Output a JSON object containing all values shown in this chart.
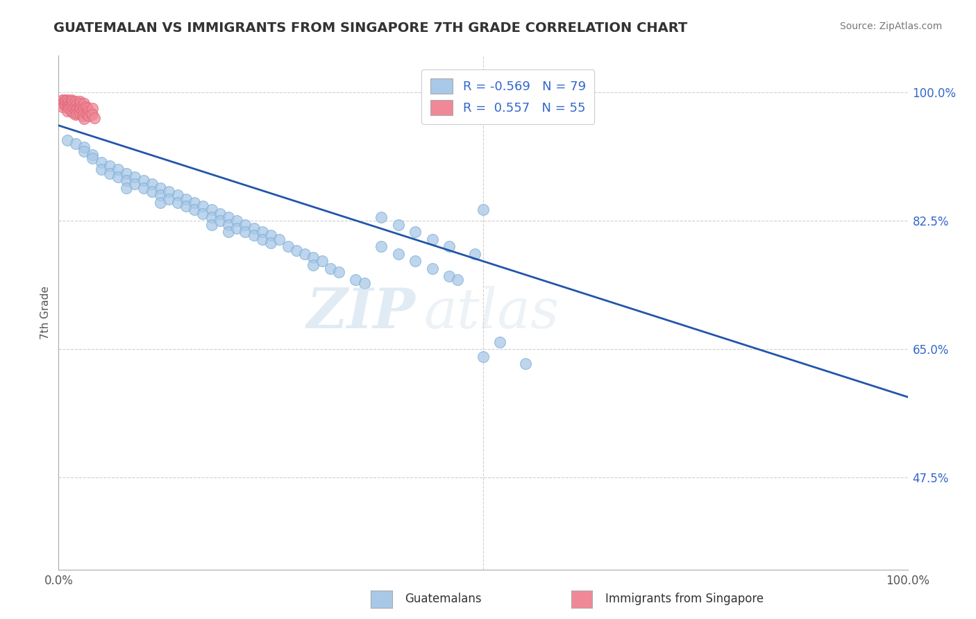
{
  "title": "GUATEMALAN VS IMMIGRANTS FROM SINGAPORE 7TH GRADE CORRELATION CHART",
  "source": "Source: ZipAtlas.com",
  "ylabel": "7th Grade",
  "blue_R": -0.569,
  "blue_N": 79,
  "pink_R": 0.557,
  "pink_N": 55,
  "blue_color": "#a8c8e8",
  "pink_color": "#f08898",
  "blue_edge": "#7aaed4",
  "pink_edge": "#e06878",
  "line_color": "#2255aa",
  "legend_blue_color": "#a8c8e8",
  "legend_pink_color": "#f08898",
  "grid_color": "#bbbbbb",
  "background_color": "#ffffff",
  "trendline_x0": 0.0,
  "trendline_x1": 1.0,
  "trendline_y0": 0.955,
  "trendline_y1": 0.585,
  "xmin": 0.0,
  "xmax": 1.0,
  "ymin": 0.35,
  "ymax": 1.05,
  "ytick_vals": [
    0.475,
    0.65,
    0.825,
    1.0
  ],
  "ytick_labels": [
    "47.5%",
    "65.0%",
    "82.5%",
    "100.0%"
  ],
  "blue_x": [
    0.01,
    0.02,
    0.03,
    0.03,
    0.04,
    0.04,
    0.05,
    0.05,
    0.06,
    0.06,
    0.07,
    0.07,
    0.08,
    0.08,
    0.08,
    0.09,
    0.09,
    0.1,
    0.1,
    0.11,
    0.11,
    0.12,
    0.12,
    0.12,
    0.13,
    0.13,
    0.14,
    0.14,
    0.15,
    0.15,
    0.16,
    0.16,
    0.17,
    0.17,
    0.18,
    0.18,
    0.18,
    0.19,
    0.19,
    0.2,
    0.2,
    0.2,
    0.21,
    0.21,
    0.22,
    0.22,
    0.23,
    0.23,
    0.24,
    0.24,
    0.25,
    0.25,
    0.26,
    0.27,
    0.28,
    0.29,
    0.3,
    0.3,
    0.31,
    0.32,
    0.33,
    0.35,
    0.36,
    0.38,
    0.4,
    0.42,
    0.44,
    0.46,
    0.49,
    0.5,
    0.52,
    0.38,
    0.4,
    0.42,
    0.44,
    0.46,
    0.47,
    0.5,
    0.55
  ],
  "blue_y": [
    0.935,
    0.93,
    0.925,
    0.92,
    0.915,
    0.91,
    0.905,
    0.895,
    0.9,
    0.89,
    0.895,
    0.885,
    0.89,
    0.88,
    0.87,
    0.885,
    0.875,
    0.88,
    0.87,
    0.875,
    0.865,
    0.87,
    0.86,
    0.85,
    0.865,
    0.855,
    0.86,
    0.85,
    0.855,
    0.845,
    0.85,
    0.84,
    0.845,
    0.835,
    0.84,
    0.83,
    0.82,
    0.835,
    0.825,
    0.83,
    0.82,
    0.81,
    0.825,
    0.815,
    0.82,
    0.81,
    0.815,
    0.805,
    0.81,
    0.8,
    0.805,
    0.795,
    0.8,
    0.79,
    0.785,
    0.78,
    0.775,
    0.765,
    0.77,
    0.76,
    0.755,
    0.745,
    0.74,
    0.83,
    0.82,
    0.81,
    0.8,
    0.79,
    0.78,
    0.84,
    0.66,
    0.79,
    0.78,
    0.77,
    0.76,
    0.75,
    0.745,
    0.64,
    0.63
  ],
  "pink_x": [
    0.005,
    0.005,
    0.005,
    0.007,
    0.007,
    0.008,
    0.008,
    0.01,
    0.01,
    0.01,
    0.01,
    0.012,
    0.012,
    0.012,
    0.014,
    0.014,
    0.015,
    0.015,
    0.015,
    0.016,
    0.016,
    0.018,
    0.018,
    0.018,
    0.02,
    0.02,
    0.02,
    0.02,
    0.022,
    0.022,
    0.022,
    0.024,
    0.024,
    0.025,
    0.025,
    0.025,
    0.026,
    0.026,
    0.028,
    0.028,
    0.028,
    0.03,
    0.03,
    0.03,
    0.03,
    0.032,
    0.032,
    0.034,
    0.034,
    0.036,
    0.036,
    0.038,
    0.04,
    0.04,
    0.042
  ],
  "pink_y": [
    0.99,
    0.985,
    0.98,
    0.99,
    0.985,
    0.988,
    0.982,
    0.99,
    0.985,
    0.98,
    0.975,
    0.988,
    0.982,
    0.978,
    0.985,
    0.98,
    0.99,
    0.985,
    0.975,
    0.988,
    0.982,
    0.985,
    0.978,
    0.972,
    0.988,
    0.982,
    0.976,
    0.97,
    0.985,
    0.978,
    0.972,
    0.982,
    0.975,
    0.988,
    0.98,
    0.972,
    0.985,
    0.978,
    0.982,
    0.976,
    0.968,
    0.985,
    0.978,
    0.972,
    0.964,
    0.98,
    0.972,
    0.978,
    0.97,
    0.975,
    0.968,
    0.972,
    0.978,
    0.97,
    0.965
  ],
  "watermark_zip_color": "#c8d8e8",
  "watermark_atlas_color": "#d0dce8",
  "scatter_size": 130,
  "scatter_alpha": 0.75
}
